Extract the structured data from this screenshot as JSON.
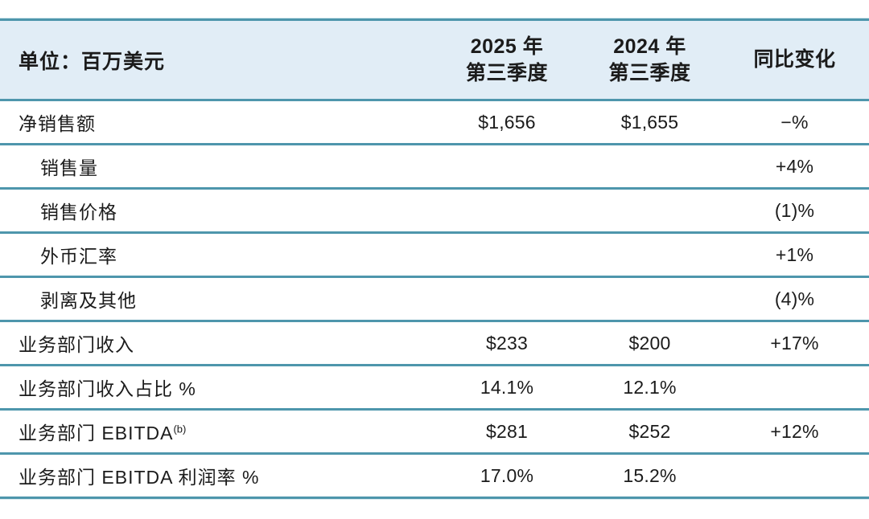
{
  "table": {
    "unit_label": "单位：百万美元",
    "header": {
      "col_2025_line1": "2025 年",
      "col_2025_line2": "第三季度",
      "col_2024_line1": "2024 年",
      "col_2024_line2": "第三季度",
      "col_change": "同比变化"
    },
    "rows": [
      {
        "label": "净销售额",
        "sup": "",
        "q3_2025": "$1,656",
        "q3_2024": "$1,655",
        "yoy_change": "−%"
      },
      {
        "label": "销售量",
        "sup": "",
        "q3_2025": "",
        "q3_2024": "",
        "yoy_change": "+4%"
      },
      {
        "label": "销售价格",
        "sup": "",
        "q3_2025": "",
        "q3_2024": "",
        "yoy_change": "(1)%"
      },
      {
        "label": "外币汇率",
        "sup": "",
        "q3_2025": "",
        "q3_2024": "",
        "yoy_change": "+1%"
      },
      {
        "label": "剥离及其他",
        "sup": "",
        "q3_2025": "",
        "q3_2024": "",
        "yoy_change": "(4)%"
      },
      {
        "label": "业务部门收入",
        "sup": "",
        "q3_2025": "$233",
        "q3_2024": "$200",
        "yoy_change": "+17%"
      },
      {
        "label": "业务部门收入占比 %",
        "sup": "",
        "q3_2025": "14.1%",
        "q3_2024": "12.1%",
        "yoy_change": ""
      },
      {
        "label": "业务部门 EBITDA",
        "sup": "(b)",
        "q3_2025": "$281",
        "q3_2024": "$252",
        "yoy_change": "+12%"
      },
      {
        "label": "业务部门 EBITDA 利润率 %",
        "sup": "",
        "q3_2025": "17.0%",
        "q3_2024": "15.2%",
        "yoy_change": ""
      }
    ],
    "colors": {
      "header_background": "#e1edf6",
      "rule_teal": "#4e96ac",
      "text": "#1b1b1b"
    }
  }
}
